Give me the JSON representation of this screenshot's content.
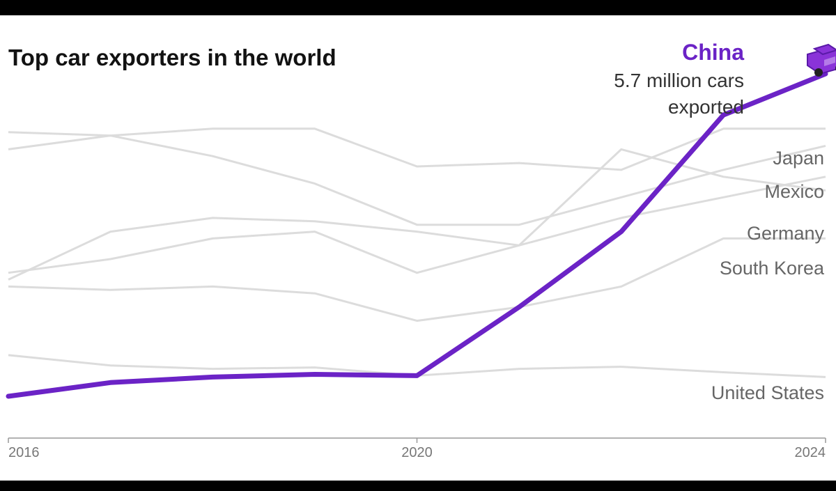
{
  "colors": {
    "highlight": "#6b23c6",
    "context": "#dcdcdc",
    "axis": "#999999",
    "car": "#8a33d8"
  },
  "chart_data": {
    "type": "line",
    "title": "Top car exporters in the world",
    "x": [
      2016,
      2017,
      2018,
      2019,
      2020,
      2021,
      2022,
      2023,
      2024
    ],
    "x_tick_labels": [
      "2016",
      "2020",
      "2024"
    ],
    "highlight": {
      "name": "China",
      "note_lines": [
        "5.7 million cars",
        "exported"
      ],
      "values": [
        1.0,
        1.2,
        1.28,
        1.32,
        1.3,
        2.3,
        3.4,
        5.1,
        5.7
      ]
    },
    "series": [
      {
        "name": "Japan",
        "values": [
          4.6,
          4.8,
          4.9,
          4.9,
          4.35,
          4.4,
          4.3,
          4.9,
          4.9
        ]
      },
      {
        "name": "Mexico",
        "values": [
          4.85,
          4.8,
          4.5,
          4.1,
          3.5,
          3.5,
          3.9,
          4.3,
          4.65
        ]
      },
      {
        "name": "Germany",
        "values": [
          2.7,
          3.4,
          3.6,
          3.55,
          3.4,
          3.2,
          4.6,
          4.2,
          4.0
        ]
      },
      {
        "name": "South Korea",
        "values": [
          2.8,
          3.0,
          3.3,
          3.4,
          2.8,
          3.2,
          3.6,
          3.9,
          4.2
        ]
      },
      {
        "name": "",
        "values": [
          2.6,
          2.55,
          2.6,
          2.5,
          2.1,
          2.3,
          2.6,
          3.3,
          3.3
        ]
      },
      {
        "name": "United States",
        "values": [
          1.6,
          1.45,
          1.4,
          1.42,
          1.3,
          1.4,
          1.43,
          1.35,
          1.28
        ]
      }
    ]
  }
}
